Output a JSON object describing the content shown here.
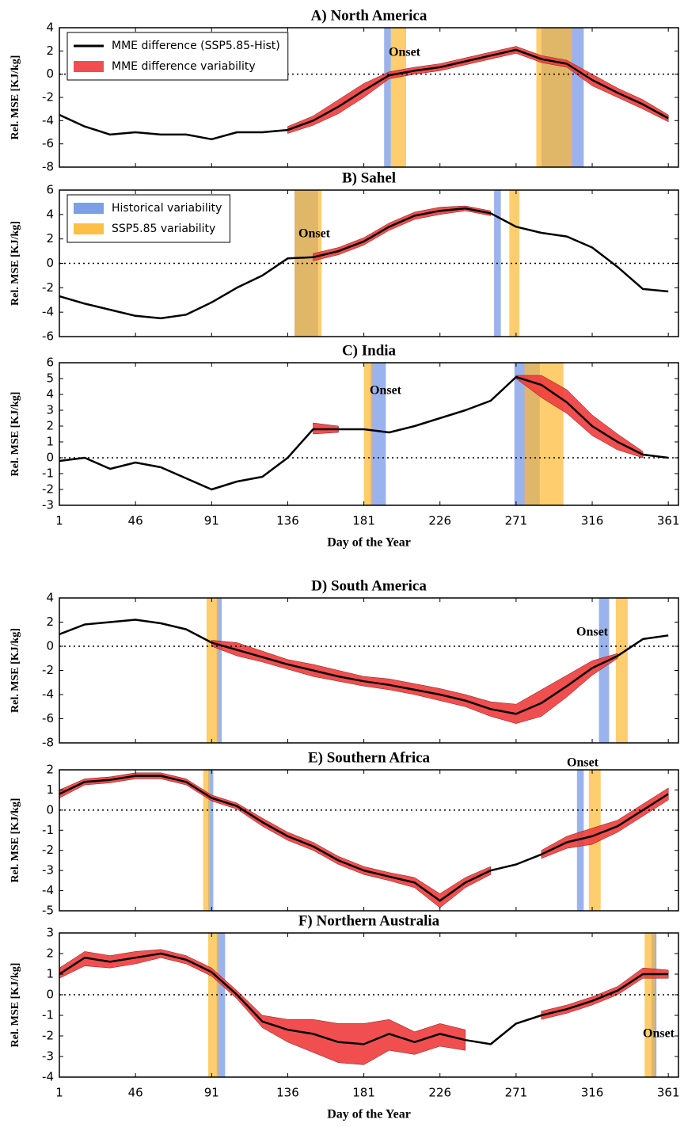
{
  "chart_data": [
    {
      "type": "line",
      "title": "A) North America",
      "ylabel": "Rel. MSE [KJ/kg]",
      "annotation": "Onset",
      "legend": "upper left",
      "show_xticklabels": false,
      "hline": 0,
      "xlim": [
        1,
        367
      ],
      "xticks": [
        1,
        46,
        91,
        136,
        181,
        226,
        271,
        316,
        361
      ],
      "ylim": [
        -8,
        4
      ],
      "yticks": [
        -8,
        -6,
        -4,
        -2,
        0,
        2,
        4
      ],
      "x": [
        1,
        16,
        31,
        46,
        61,
        76,
        91,
        106,
        121,
        136,
        151,
        166,
        181,
        196,
        211,
        226,
        241,
        256,
        271,
        286,
        301,
        316,
        331,
        346,
        361
      ],
      "series": [
        {
          "name": "MME difference (SSP5.85-Hist)",
          "color": "#000000",
          "values": [
            -3.5,
            -4.5,
            -5.2,
            -5,
            -5.2,
            -5.2,
            -5.6,
            -5,
            -5,
            -4.8,
            -4,
            -2.8,
            -1.4,
            -0.1,
            0.3,
            0.6,
            1.1,
            1.6,
            2.1,
            1.3,
            0.9,
            -0.5,
            -1.6,
            -2.6,
            -3.8
          ]
        }
      ],
      "band": {
        "name": "MME difference variability",
        "color": "#f03c3c",
        "lower": [
          null,
          null,
          null,
          null,
          null,
          null,
          null,
          null,
          null,
          -5.1,
          -4.4,
          -3.4,
          -2,
          -0.4,
          0,
          0.3,
          0.8,
          1.3,
          1.8,
          1,
          0.6,
          -1,
          -2,
          -3,
          -4.1
        ],
        "upper": [
          null,
          null,
          null,
          null,
          null,
          null,
          null,
          null,
          null,
          -4.5,
          -3.6,
          -2.2,
          -0.8,
          0.2,
          0.6,
          0.9,
          1.4,
          1.9,
          2.4,
          1.6,
          1.2,
          0,
          -1.2,
          -2.2,
          -3.5
        ]
      },
      "spans": [
        {
          "color": "#6f93e6",
          "ranges": [
            [
              193,
              197
            ],
            [
              286,
              311
            ]
          ]
        },
        {
          "color": "#fdb830",
          "ranges": [
            [
              197,
              206
            ],
            [
              283,
              304
            ]
          ]
        }
      ]
    },
    {
      "type": "line",
      "title": "B) Sahel",
      "ylabel": "Rel. MSE [KJ/kg]",
      "annotation": "Onset",
      "legend": "upper left",
      "show_xticklabels": false,
      "hline": 0,
      "xlim": [
        1,
        367
      ],
      "xticks": [
        1,
        46,
        91,
        136,
        181,
        226,
        271,
        316,
        361
      ],
      "ylim": [
        -6,
        6
      ],
      "yticks": [
        -6,
        -4,
        -2,
        0,
        2,
        4,
        6
      ],
      "x": [
        1,
        16,
        31,
        46,
        61,
        76,
        91,
        106,
        121,
        136,
        151,
        166,
        181,
        196,
        211,
        226,
        241,
        256,
        271,
        286,
        301,
        316,
        331,
        346,
        361
      ],
      "series": [
        {
          "color": "#000000",
          "values": [
            -2.7,
            -3.3,
            -3.8,
            -4.3,
            -4.5,
            -4.2,
            -3.2,
            -2,
            -1,
            0.4,
            0.5,
            1,
            1.8,
            3,
            3.9,
            4.3,
            4.5,
            4.1,
            3,
            2.5,
            2.2,
            1.3,
            -0.3,
            -2.1,
            -2.3
          ]
        }
      ],
      "band": {
        "color": "#f03c3c",
        "lower": [
          null,
          null,
          null,
          null,
          null,
          null,
          null,
          null,
          null,
          null,
          0.2,
          0.7,
          1.5,
          2.7,
          3.6,
          4,
          4.3,
          3.9,
          null,
          null,
          null,
          null,
          null,
          null,
          null
        ],
        "upper": [
          null,
          null,
          null,
          null,
          null,
          null,
          null,
          null,
          null,
          null,
          0.8,
          1.3,
          2.1,
          3.3,
          4.2,
          4.6,
          4.7,
          4.3,
          null,
          null,
          null,
          null,
          null,
          null,
          null
        ]
      },
      "spans": [
        {
          "name": "Historical variability",
          "color": "#6f93e6",
          "ranges": [
            [
              140,
              154
            ],
            [
              258,
              262
            ]
          ]
        },
        {
          "name": "SSP5.85 variability",
          "color": "#fdb830",
          "ranges": [
            [
              140,
              156
            ],
            [
              267,
              273
            ]
          ]
        }
      ]
    },
    {
      "type": "line",
      "title": "C) India",
      "ylabel": "Rel. MSE [KJ/kg]",
      "xlabel": "Day of the Year",
      "annotation": "Onset",
      "show_xticklabels": true,
      "hline": 0,
      "xlim": [
        1,
        367
      ],
      "xticks": [
        1,
        46,
        91,
        136,
        181,
        226,
        271,
        316,
        361
      ],
      "ylim": [
        -3,
        6
      ],
      "yticks": [
        -3,
        -2,
        -1,
        0,
        1,
        2,
        3,
        4,
        5,
        6
      ],
      "x": [
        1,
        16,
        31,
        46,
        61,
        76,
        91,
        106,
        121,
        136,
        151,
        166,
        181,
        196,
        211,
        226,
        241,
        256,
        271,
        286,
        301,
        316,
        331,
        346,
        361
      ],
      "series": [
        {
          "color": "#000000",
          "values": [
            -0.2,
            0,
            -0.7,
            -0.3,
            -0.6,
            -1.3,
            -2,
            -1.5,
            -1.2,
            0,
            1.8,
            1.8,
            1.8,
            1.6,
            2,
            2.5,
            3,
            3.6,
            5.1,
            4.6,
            3.5,
            2,
            1,
            0.2,
            0
          ]
        }
      ],
      "band": {
        "color": "#f03c3c",
        "lower": [
          null,
          null,
          null,
          null,
          null,
          null,
          null,
          null,
          null,
          null,
          1.5,
          1.6,
          null,
          null,
          null,
          null,
          null,
          null,
          5,
          3.8,
          2.8,
          1.4,
          0.5,
          0,
          null
        ],
        "upper": [
          null,
          null,
          null,
          null,
          null,
          null,
          null,
          null,
          null,
          null,
          2.2,
          2,
          null,
          null,
          null,
          null,
          null,
          null,
          5.2,
          5.2,
          4.3,
          2.7,
          1.5,
          0.4,
          null
        ]
      },
      "spans": [
        {
          "color": "#6f93e6",
          "ranges": [
            [
              185,
              194
            ],
            [
              270,
              285
            ]
          ]
        },
        {
          "color": "#fdb830",
          "ranges": [
            [
              181,
              186
            ],
            [
              276,
              299
            ]
          ]
        }
      ]
    },
    {
      "type": "line",
      "title": "D) South America",
      "ylabel": "Rel. MSE [KJ/kg]",
      "annotation": "Onset",
      "show_xticklabels": false,
      "hline": 0,
      "xlim": [
        1,
        367
      ],
      "xticks": [
        1,
        46,
        91,
        136,
        181,
        226,
        271,
        316,
        361
      ],
      "ylim": [
        -8,
        4
      ],
      "yticks": [
        -8,
        -6,
        -4,
        -2,
        0,
        2,
        4
      ],
      "x": [
        1,
        16,
        31,
        46,
        61,
        76,
        91,
        106,
        121,
        136,
        151,
        166,
        181,
        196,
        211,
        226,
        241,
        256,
        271,
        286,
        301,
        316,
        331,
        346,
        361
      ],
      "series": [
        {
          "color": "#000000",
          "values": [
            1,
            1.8,
            2,
            2.2,
            1.9,
            1.4,
            0.3,
            -0.3,
            -0.9,
            -1.5,
            -2,
            -2.5,
            -2.9,
            -3.2,
            -3.6,
            -4,
            -4.5,
            -5.2,
            -5.6,
            -4.7,
            -3.3,
            -1.8,
            -0.8,
            0.6,
            0.9
          ]
        }
      ],
      "band": {
        "color": "#f03c3c",
        "lower": [
          null,
          null,
          null,
          null,
          null,
          null,
          0,
          -0.8,
          -1.3,
          -1.9,
          -2.5,
          -2.9,
          -3.3,
          -3.6,
          -4,
          -4.5,
          -5,
          -5.8,
          -6.4,
          -5.8,
          -4.2,
          -2.4,
          -1,
          null,
          null
        ],
        "upper": [
          null,
          null,
          null,
          null,
          null,
          null,
          0.5,
          0.3,
          -0.4,
          -1.1,
          -1.5,
          -2,
          -2.5,
          -2.7,
          -3.1,
          -3.5,
          -4,
          -4.6,
          -4.8,
          -3.6,
          -2.4,
          -1.2,
          -0.6,
          null,
          null
        ]
      },
      "spans": [
        {
          "color": "#6f93e6",
          "ranges": [
            [
              94,
              97
            ],
            [
              320,
              326
            ]
          ]
        },
        {
          "color": "#fdb830",
          "ranges": [
            [
              88,
              95
            ],
            [
              330,
              337
            ]
          ]
        }
      ]
    },
    {
      "type": "line",
      "title": "E) Southern Africa",
      "ylabel": "Rel. MSE [KJ/kg]",
      "annotation": "Onset",
      "show_xticklabels": false,
      "hline": 0,
      "xlim": [
        1,
        367
      ],
      "xticks": [
        1,
        46,
        91,
        136,
        181,
        226,
        271,
        316,
        361
      ],
      "ylim": [
        -5,
        2
      ],
      "yticks": [
        -5,
        -4,
        -3,
        -2,
        -1,
        0,
        1,
        2
      ],
      "x": [
        1,
        16,
        31,
        46,
        61,
        76,
        91,
        106,
        121,
        136,
        151,
        166,
        181,
        196,
        211,
        226,
        241,
        256,
        271,
        286,
        301,
        316,
        331,
        346,
        361
      ],
      "series": [
        {
          "color": "#000000",
          "values": [
            0.8,
            1.4,
            1.5,
            1.7,
            1.7,
            1.4,
            0.6,
            0.2,
            -0.6,
            -1.3,
            -1.8,
            -2.5,
            -3,
            -3.3,
            -3.6,
            -4.5,
            -3.6,
            -3,
            -2.7,
            -2.2,
            -1.6,
            -1.3,
            -0.8,
            0,
            0.8
          ]
        }
      ],
      "band": {
        "color": "#f03c3c",
        "lower": [
          0.6,
          1.25,
          1.35,
          1.55,
          1.55,
          1.25,
          0.45,
          0.05,
          -0.8,
          -1.5,
          -2,
          -2.7,
          -3.2,
          -3.5,
          -3.85,
          -4.85,
          -3.85,
          -3.2,
          null,
          -2.4,
          -1.9,
          -1.7,
          -1.1,
          -0.3,
          0.5
        ],
        "upper": [
          1,
          1.55,
          1.65,
          1.85,
          1.85,
          1.55,
          0.75,
          0.35,
          -0.4,
          -1.1,
          -1.6,
          -2.3,
          -2.8,
          -3.1,
          -3.35,
          -4.15,
          -3.35,
          -2.8,
          null,
          -2,
          -1.3,
          -0.9,
          -0.5,
          0.3,
          1.1
        ]
      },
      "spans": [
        {
          "color": "#6f93e6",
          "ranges": [
            [
              89,
              92
            ],
            [
              307,
              311
            ]
          ]
        },
        {
          "color": "#fdb830",
          "ranges": [
            [
              86,
              90
            ],
            [
              314,
              321
            ]
          ]
        }
      ]
    },
    {
      "type": "line",
      "title": "F) Northern Australia",
      "ylabel": "Rel. MSE [KJ/kg]",
      "xlabel": "Day of the Year",
      "annotation": "Onset",
      "show_xticklabels": true,
      "hline": 0,
      "xlim": [
        1,
        367
      ],
      "xticks": [
        1,
        46,
        91,
        136,
        181,
        226,
        271,
        316,
        361
      ],
      "ylim": [
        -4,
        3
      ],
      "yticks": [
        -4,
        -3,
        -2,
        -1,
        0,
        1,
        2,
        3
      ],
      "x": [
        1,
        16,
        31,
        46,
        61,
        76,
        91,
        106,
        121,
        136,
        151,
        166,
        181,
        196,
        211,
        226,
        241,
        256,
        271,
        286,
        301,
        316,
        331,
        346,
        361
      ],
      "series": [
        {
          "color": "#000000",
          "values": [
            1,
            1.8,
            1.6,
            1.8,
            2,
            1.7,
            1.1,
            0,
            -1.3,
            -1.7,
            -1.9,
            -2.3,
            -2.4,
            -1.9,
            -2.3,
            -1.9,
            -2.2,
            -2.4,
            -1.4,
            -1,
            -0.7,
            -0.3,
            0.2,
            1,
            1
          ]
        }
      ],
      "band": {
        "color": "#f03c3c",
        "lower": [
          0.8,
          1.4,
          1.3,
          1.5,
          1.8,
          1.5,
          0.9,
          -0.2,
          -1.6,
          -2.3,
          -2.8,
          -3.3,
          -3.4,
          -2.7,
          -2.9,
          -2.5,
          -2.7,
          null,
          null,
          -1.2,
          -0.9,
          -0.5,
          0,
          0.8,
          0.8
        ],
        "upper": [
          1.3,
          2.1,
          1.9,
          2.1,
          2.2,
          1.9,
          1.3,
          0.2,
          -1,
          -1.2,
          -1.2,
          -1.4,
          -1.4,
          -1.2,
          -1.8,
          -1.4,
          -1.7,
          null,
          null,
          -0.8,
          -0.5,
          -0.1,
          0.4,
          1.3,
          1.2
        ]
      },
      "spans": [
        {
          "color": "#6f93e6",
          "ranges": [
            [
              94,
              99
            ],
            [
              351,
              354
            ]
          ]
        },
        {
          "color": "#fdb830",
          "ranges": [
            [
              89,
              95
            ],
            [
              347,
              353
            ]
          ]
        }
      ]
    }
  ]
}
